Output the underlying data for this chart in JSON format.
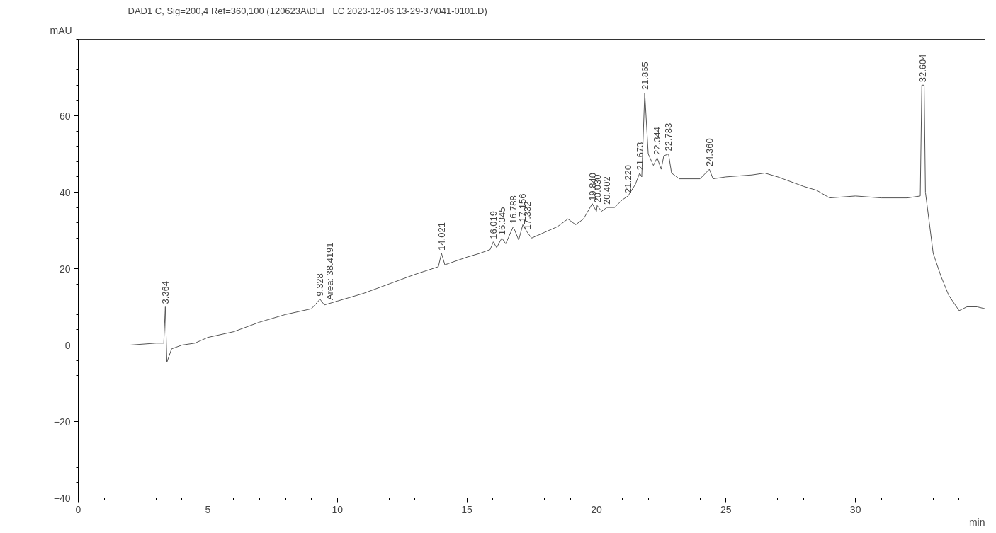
{
  "chart_data": {
    "type": "line",
    "title": "DAD1 C, Sig=200,4 Ref=360,100 (120623A\\DEF_LC 2023-12-06 13-29-37\\041-0101.D)",
    "xlabel": "min",
    "ylabel": "mAU",
    "xlim": [
      0,
      35
    ],
    "ylim": [
      -40,
      80
    ],
    "xticks": [
      0,
      5,
      10,
      15,
      20,
      25,
      30
    ],
    "yticks": [
      -40,
      -20,
      0,
      20,
      40,
      60
    ],
    "grid": false,
    "marker": "none",
    "line_style": "solid",
    "series": [
      {
        "color": "#555555",
        "x": [
          0,
          1,
          2,
          3,
          3.3,
          3.36,
          3.42,
          3.6,
          4.0,
          4.5,
          5.0,
          6.0,
          7.0,
          8.0,
          9.0,
          9.33,
          9.5,
          10,
          11,
          12,
          13,
          13.9,
          14.02,
          14.15,
          15,
          15.5,
          15.9,
          16.02,
          16.15,
          16.35,
          16.5,
          16.79,
          17.0,
          17.16,
          17.33,
          17.5,
          18,
          18.5,
          18.9,
          19.2,
          19.5,
          19.84,
          20.0,
          20.03,
          20.2,
          20.4,
          20.7,
          21.0,
          21.22,
          21.5,
          21.67,
          21.75,
          21.865,
          22.0,
          22.2,
          22.344,
          22.5,
          22.6,
          22.783,
          22.9,
          23.2,
          24.0,
          24.36,
          24.5,
          25,
          26,
          26.5,
          27,
          28,
          28.5,
          29,
          30,
          31,
          32,
          32.5,
          32.56,
          32.65,
          32.7,
          33.0,
          33.3,
          33.6,
          34.0,
          34.3,
          34.7,
          35
        ],
        "values": [
          0,
          0,
          0,
          0.5,
          0.5,
          10,
          -4.5,
          -1,
          0,
          0.5,
          2,
          3.5,
          6,
          8,
          9.5,
          12,
          10.5,
          11.5,
          13.5,
          16,
          18.5,
          20.5,
          24,
          21,
          23,
          24,
          25,
          27,
          25.5,
          28,
          26.5,
          31,
          27.5,
          31.5,
          29.5,
          28,
          29.5,
          31,
          33,
          31.5,
          33,
          37,
          35,
          36.5,
          35,
          36,
          36,
          38,
          39,
          42,
          45,
          44,
          66,
          50,
          47,
          49,
          46,
          49.5,
          50,
          45,
          43.5,
          43.5,
          46,
          43.5,
          44,
          44.5,
          45,
          44,
          41.5,
          40.5,
          38.5,
          39,
          38.5,
          38.5,
          39,
          68,
          68,
          40,
          24,
          18,
          13,
          9,
          10,
          10,
          9.5
        ]
      }
    ],
    "annotations": [
      {
        "text": "3.364",
        "x": 3.364,
        "y": 10
      },
      {
        "text": "9.328",
        "x": 9.328,
        "y": 12
      },
      {
        "text": "Area: 38.4191",
        "x": 9.7,
        "y": 11
      },
      {
        "text": "14.021",
        "x": 14.021,
        "y": 24
      },
      {
        "text": "16.019",
        "x": 16.019,
        "y": 27
      },
      {
        "text": "16.345",
        "x": 16.345,
        "y": 28
      },
      {
        "text": "16.788",
        "x": 16.788,
        "y": 31
      },
      {
        "text": "17.156",
        "x": 17.156,
        "y": 31.5
      },
      {
        "text": "17.332",
        "x": 17.332,
        "y": 29.5
      },
      {
        "text": "19.840",
        "x": 19.84,
        "y": 37
      },
      {
        "text": "20.030",
        "x": 20.03,
        "y": 36.5
      },
      {
        "text": "20.402",
        "x": 20.402,
        "y": 36
      },
      {
        "text": "21.220",
        "x": 21.22,
        "y": 39
      },
      {
        "text": "21.673",
        "x": 21.673,
        "y": 45
      },
      {
        "text": "21.865",
        "x": 21.865,
        "y": 66
      },
      {
        "text": "22.344",
        "x": 22.344,
        "y": 49
      },
      {
        "text": "22.783",
        "x": 22.783,
        "y": 50
      },
      {
        "text": "24.360",
        "x": 24.36,
        "y": 46
      },
      {
        "text": "32.604",
        "x": 32.604,
        "y": 68
      }
    ]
  }
}
